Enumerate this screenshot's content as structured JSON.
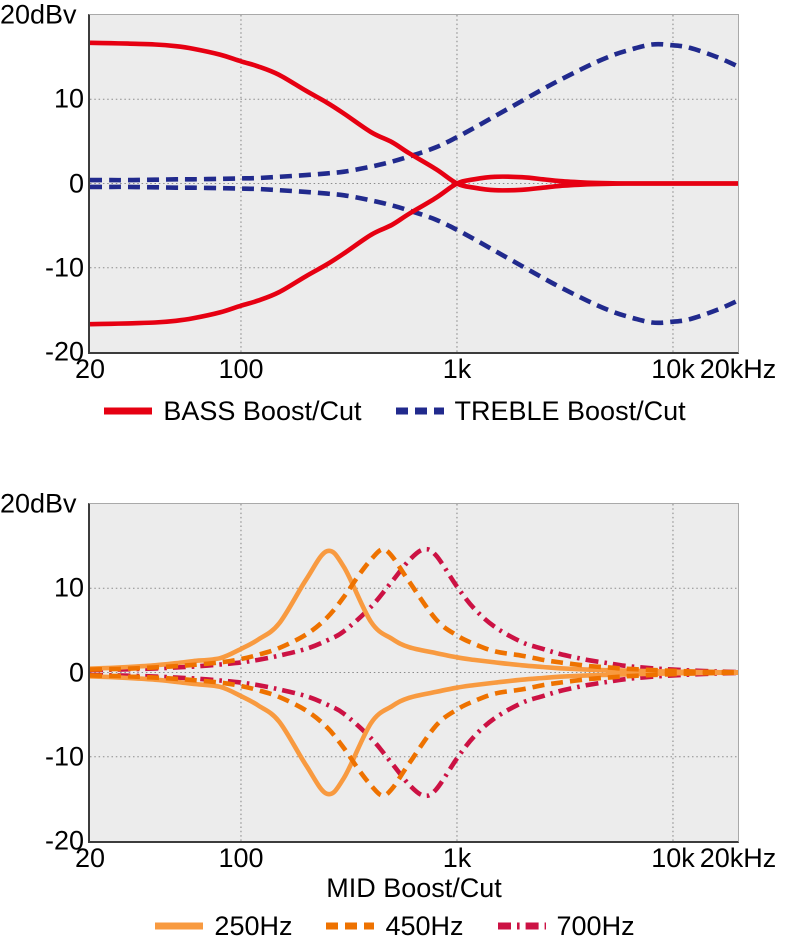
{
  "colors": {
    "plot_background": "#ececec",
    "grid": "#8c8c8c",
    "axis_dark": "#3c3c3c",
    "axis_light": "#a9a9a9",
    "text": "#000000",
    "bass_red": "#e60012",
    "treble_navy": "#212a8d",
    "mid_250_orange": "#f89a40",
    "mid_450_orange": "#ee7200",
    "mid_700_crimson": "#cc1244"
  },
  "chart_data": [
    {
      "type": "line",
      "title": "",
      "xlabel": "",
      "ylabel": "dBv",
      "x_scale": "log",
      "xlim": [
        20,
        20000
      ],
      "ylim": [
        -20,
        20
      ],
      "grid": {
        "x_values": [
          100,
          1000,
          10000
        ],
        "y_values": [
          10,
          0,
          -10
        ]
      },
      "y_ticks": [
        {
          "value": 20,
          "label": "20dBv"
        },
        {
          "value": 10,
          "label": "10"
        },
        {
          "value": 0,
          "label": "0"
        },
        {
          "value": -10,
          "label": "-10"
        },
        {
          "value": -20,
          "label": "-20"
        }
      ],
      "x_ticks": [
        {
          "value": 20,
          "label": "20"
        },
        {
          "value": 100,
          "label": "100"
        },
        {
          "value": 1000,
          "label": "1k"
        },
        {
          "value": 10000,
          "label": "10k"
        },
        {
          "value": 20000,
          "label": "20kHz"
        }
      ],
      "legend_position": "bottom",
      "legend": [
        {
          "label": "BASS Boost/Cut",
          "color": "#e60012",
          "style": "solid"
        },
        {
          "label": "TREBLE Boost/Cut",
          "color": "#212a8d",
          "style": "dashed"
        }
      ],
      "series": [
        {
          "name": "TREBLE Boost/Cut",
          "color": "#212a8d",
          "style": "dashed",
          "x": [
            20,
            25,
            30,
            40,
            50,
            60,
            80,
            100,
            120,
            150,
            200,
            250,
            300,
            400,
            500,
            600,
            800,
            1000,
            1200,
            1500,
            2000,
            2500,
            3000,
            4000,
            5000,
            6000,
            8000,
            10000,
            12000,
            16000,
            20000
          ],
          "boost": [
            0.4,
            0.4,
            0.4,
            0.45,
            0.5,
            0.5,
            0.55,
            0.6,
            0.65,
            0.8,
            1.0,
            1.2,
            1.4,
            2.0,
            2.6,
            3.2,
            4.3,
            5.5,
            6.6,
            8.0,
            9.8,
            11.2,
            12.3,
            13.9,
            15.0,
            15.7,
            16.5,
            16.4,
            16.1,
            15.0,
            13.9
          ],
          "cut": [
            -0.4,
            -0.4,
            -0.4,
            -0.45,
            -0.5,
            -0.5,
            -0.55,
            -0.6,
            -0.65,
            -0.8,
            -1.0,
            -1.2,
            -1.4,
            -2.0,
            -2.6,
            -3.2,
            -4.3,
            -5.5,
            -6.6,
            -8.0,
            -9.8,
            -11.2,
            -12.3,
            -13.9,
            -15.0,
            -15.7,
            -16.5,
            -16.4,
            -16.1,
            -15.0,
            -13.9
          ]
        },
        {
          "name": "BASS Boost/Cut",
          "color": "#e60012",
          "style": "solid",
          "x": [
            20,
            25,
            30,
            40,
            50,
            60,
            80,
            100,
            120,
            150,
            200,
            250,
            300,
            400,
            500,
            600,
            800,
            1000,
            1200,
            1500,
            2000,
            2500,
            3000,
            4000,
            5000,
            6000,
            8000,
            10000,
            12000,
            16000,
            20000
          ],
          "boost": [
            16.7,
            16.65,
            16.6,
            16.5,
            16.3,
            16.0,
            15.3,
            14.5,
            13.9,
            12.9,
            11.0,
            9.6,
            8.3,
            6.1,
            4.9,
            3.6,
            1.7,
            0.0,
            -0.5,
            -0.8,
            -0.75,
            -0.5,
            -0.28,
            -0.1,
            -0.03,
            0,
            0,
            0,
            0,
            0,
            0
          ],
          "cut": [
            -16.7,
            -16.65,
            -16.6,
            -16.5,
            -16.3,
            -16.0,
            -15.3,
            -14.5,
            -13.9,
            -12.9,
            -11.0,
            -9.6,
            -8.3,
            -6.1,
            -4.9,
            -3.6,
            -1.7,
            0.0,
            0.5,
            0.8,
            0.75,
            0.5,
            0.28,
            0.1,
            0.03,
            0,
            0,
            0,
            0,
            0,
            0
          ]
        }
      ]
    },
    {
      "type": "line",
      "title": "",
      "xlabel": "MID Boost/Cut",
      "ylabel": "dBv",
      "x_scale": "log",
      "xlim": [
        20,
        20000
      ],
      "ylim": [
        -20,
        20
      ],
      "grid": {
        "x_values": [
          100,
          1000,
          10000
        ],
        "y_values": [
          10,
          0,
          -10
        ]
      },
      "y_ticks": [
        {
          "value": 20,
          "label": "20dBv"
        },
        {
          "value": 10,
          "label": "10"
        },
        {
          "value": 0,
          "label": "0"
        },
        {
          "value": -10,
          "label": "-10"
        },
        {
          "value": -20,
          "label": "-20"
        }
      ],
      "x_ticks": [
        {
          "value": 20,
          "label": "20"
        },
        {
          "value": 100,
          "label": "100"
        },
        {
          "value": 1000,
          "label": "1k"
        },
        {
          "value": 10000,
          "label": "10k"
        },
        {
          "value": 20000,
          "label": "20kHz"
        }
      ],
      "legend_position": "bottom",
      "legend": [
        {
          "label": "250Hz",
          "color": "#f89a40",
          "style": "solid"
        },
        {
          "label": "450Hz",
          "color": "#ee7200",
          "style": "dashed"
        },
        {
          "label": "700Hz",
          "color": "#cc1244",
          "style": "dashdot"
        }
      ],
      "series": [
        {
          "name": "700Hz",
          "color": "#cc1244",
          "style": "dashdot",
          "x": [
            20,
            25,
            30,
            40,
            50,
            60,
            80,
            100,
            120,
            150,
            200,
            250,
            300,
            400,
            500,
            600,
            700,
            800,
            1000,
            1200,
            1500,
            2000,
            2500,
            3000,
            4000,
            5000,
            6000,
            8000,
            10000,
            12000,
            16000,
            20000
          ],
          "boost": [
            0.3,
            0.33,
            0.38,
            0.48,
            0.6,
            0.7,
            0.95,
            1.2,
            1.5,
            2.0,
            2.8,
            3.8,
            4.9,
            7.8,
            10.8,
            13.3,
            14.6,
            13.9,
            10.2,
            7.6,
            5.4,
            3.6,
            2.8,
            2.2,
            1.5,
            1.1,
            0.8,
            0.5,
            0.35,
            0.25,
            0.12,
            0.05
          ],
          "cut": [
            -0.3,
            -0.33,
            -0.38,
            -0.48,
            -0.6,
            -0.7,
            -0.95,
            -1.2,
            -1.5,
            -2.0,
            -2.8,
            -3.8,
            -4.9,
            -7.8,
            -10.8,
            -13.3,
            -14.6,
            -13.9,
            -10.2,
            -7.6,
            -5.4,
            -3.6,
            -2.8,
            -2.2,
            -1.5,
            -1.1,
            -0.8,
            -0.5,
            -0.35,
            -0.25,
            -0.12,
            -0.05
          ]
        },
        {
          "name": "250Hz",
          "color": "#f89a40",
          "style": "solid",
          "x": [
            20,
            25,
            30,
            40,
            50,
            60,
            80,
            100,
            120,
            150,
            200,
            250,
            300,
            400,
            500,
            600,
            800,
            1000,
            1200,
            1500,
            2000,
            2500,
            3000,
            4000,
            5000,
            6000,
            8000,
            10000,
            12000,
            16000,
            20000
          ],
          "boost": [
            0.45,
            0.55,
            0.65,
            0.85,
            1.1,
            1.35,
            1.7,
            2.8,
            3.9,
            5.8,
            11.0,
            14.4,
            12.5,
            6.0,
            4.0,
            3.0,
            2.3,
            1.8,
            1.5,
            1.2,
            0.85,
            0.65,
            0.5,
            0.35,
            0.27,
            0.22,
            0.15,
            0.1,
            0.07,
            0.03,
            0.02
          ],
          "cut": [
            -0.45,
            -0.55,
            -0.65,
            -0.85,
            -1.1,
            -1.35,
            -1.7,
            -2.8,
            -3.9,
            -5.8,
            -11.0,
            -14.4,
            -12.5,
            -6.0,
            -4.0,
            -3.0,
            -2.3,
            -1.8,
            -1.5,
            -1.2,
            -0.85,
            -0.65,
            -0.5,
            -0.35,
            -0.27,
            -0.22,
            -0.15,
            -0.1,
            -0.07,
            -0.03,
            -0.02
          ]
        },
        {
          "name": "450Hz",
          "color": "#ee7200",
          "style": "dashed",
          "x": [
            20,
            25,
            30,
            40,
            50,
            60,
            80,
            100,
            120,
            150,
            200,
            250,
            300,
            350,
            400,
            450,
            500,
            600,
            800,
            1000,
            1200,
            1500,
            2000,
            2500,
            3000,
            4000,
            5000,
            6000,
            8000,
            10000,
            12000,
            16000,
            20000
          ],
          "boost": [
            0.35,
            0.4,
            0.45,
            0.6,
            0.75,
            0.9,
            1.2,
            1.6,
            2.1,
            2.9,
            4.5,
            6.5,
            9.0,
            11.5,
            13.4,
            14.6,
            13.8,
            10.8,
            6.3,
            4.4,
            3.4,
            2.5,
            2.0,
            1.5,
            1.2,
            0.8,
            0.6,
            0.45,
            0.3,
            0.2,
            0.13,
            0.06,
            0.03
          ],
          "cut": [
            -0.35,
            -0.4,
            -0.45,
            -0.6,
            -0.75,
            -0.9,
            -1.2,
            -1.6,
            -2.1,
            -2.9,
            -4.5,
            -6.5,
            -9.0,
            -11.5,
            -13.4,
            -14.6,
            -13.8,
            -10.8,
            -6.3,
            -4.4,
            -3.4,
            -2.5,
            -2.0,
            -1.5,
            -1.2,
            -0.8,
            -0.6,
            -0.45,
            -0.3,
            -0.2,
            -0.13,
            -0.06,
            -0.03
          ]
        }
      ]
    }
  ]
}
